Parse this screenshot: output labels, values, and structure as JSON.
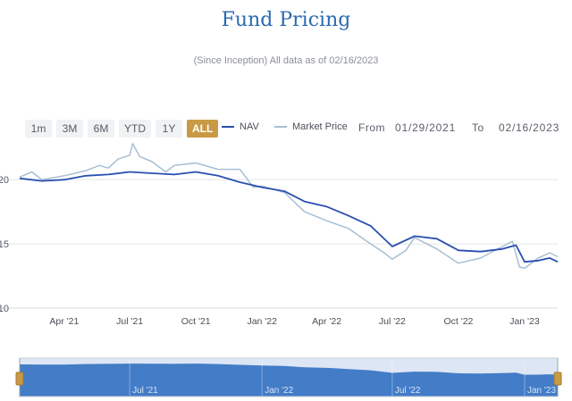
{
  "page": {
    "title": "Fund Pricing",
    "subtitle": "(Since Inception) All data as of 02/16/2023"
  },
  "range_buttons": [
    "1m",
    "3M",
    "6M",
    "YTD",
    "1Y",
    "ALL"
  ],
  "active_range": "ALL",
  "legend": {
    "nav": {
      "label": "NAV",
      "color": "#2b4fb0"
    },
    "market": {
      "label": "Market Price",
      "color": "#a7bfd2"
    }
  },
  "date_range": {
    "from_label": "From",
    "from_value": "01/29/2021",
    "to_label": "To",
    "to_value": "02/16/2023"
  },
  "chart_data": {
    "type": "line",
    "title": "",
    "xlabel": "",
    "ylabel": "",
    "x_range": [
      "2021-01-29",
      "2023-02-16"
    ],
    "ylim": [
      10,
      23
    ],
    "yticks": [
      {
        "value": 20,
        "label": "20"
      },
      {
        "value": 15,
        "label": "15"
      },
      {
        "value": 10,
        "label": "10"
      }
    ],
    "xticks": [
      {
        "date": "2021-04-01",
        "label": "Apr '21"
      },
      {
        "date": "2021-07-01",
        "label": "Jul '21"
      },
      {
        "date": "2021-10-01",
        "label": "Oct '21"
      },
      {
        "date": "2022-01-01",
        "label": "Jan '22"
      },
      {
        "date": "2022-04-01",
        "label": "Apr '22"
      },
      {
        "date": "2022-07-01",
        "label": "Jul '22"
      },
      {
        "date": "2022-10-01",
        "label": "Oct '22"
      },
      {
        "date": "2023-01-01",
        "label": "Jan '23"
      }
    ],
    "grid": true,
    "legend_position": "top",
    "series": [
      {
        "name": "NAV",
        "color": "#2b4fb0",
        "points": [
          [
            "2021-01-29",
            20.1
          ],
          [
            "2021-03-01",
            19.9
          ],
          [
            "2021-04-01",
            20.0
          ],
          [
            "2021-05-01",
            20.3
          ],
          [
            "2021-06-01",
            20.4
          ],
          [
            "2021-07-01",
            20.6
          ],
          [
            "2021-08-01",
            20.5
          ],
          [
            "2021-09-01",
            20.4
          ],
          [
            "2021-10-01",
            20.6
          ],
          [
            "2021-11-01",
            20.3
          ],
          [
            "2021-12-01",
            19.8
          ],
          [
            "2022-01-01",
            19.4
          ],
          [
            "2022-02-01",
            19.1
          ],
          [
            "2022-03-01",
            18.3
          ],
          [
            "2022-04-01",
            17.9
          ],
          [
            "2022-05-01",
            17.2
          ],
          [
            "2022-06-01",
            16.4
          ],
          [
            "2022-07-01",
            14.8
          ],
          [
            "2022-08-01",
            15.6
          ],
          [
            "2022-09-01",
            15.4
          ],
          [
            "2022-10-01",
            14.5
          ],
          [
            "2022-11-01",
            14.4
          ],
          [
            "2022-12-01",
            14.6
          ],
          [
            "2022-12-20",
            14.9
          ],
          [
            "2023-01-01",
            13.6
          ],
          [
            "2023-01-20",
            13.7
          ],
          [
            "2023-02-05",
            13.9
          ],
          [
            "2023-02-16",
            13.6
          ]
        ]
      },
      {
        "name": "Market Price",
        "color": "#a7bfd2",
        "points": [
          [
            "2021-01-29",
            20.2
          ],
          [
            "2021-02-15",
            20.6
          ],
          [
            "2021-03-01",
            20.0
          ],
          [
            "2021-04-01",
            20.3
          ],
          [
            "2021-05-01",
            20.7
          ],
          [
            "2021-05-20",
            21.1
          ],
          [
            "2021-06-01",
            20.9
          ],
          [
            "2021-06-15",
            21.6
          ],
          [
            "2021-07-01",
            21.9
          ],
          [
            "2021-07-05",
            22.8
          ],
          [
            "2021-07-15",
            21.8
          ],
          [
            "2021-08-01",
            21.4
          ],
          [
            "2021-08-20",
            20.6
          ],
          [
            "2021-09-01",
            21.1
          ],
          [
            "2021-10-01",
            21.3
          ],
          [
            "2021-11-01",
            20.8
          ],
          [
            "2021-12-01",
            20.8
          ],
          [
            "2021-12-20",
            19.4
          ],
          [
            "2022-01-01",
            19.5
          ],
          [
            "2022-02-01",
            19.0
          ],
          [
            "2022-03-01",
            17.5
          ],
          [
            "2022-04-01",
            16.8
          ],
          [
            "2022-05-01",
            16.2
          ],
          [
            "2022-06-01",
            15.0
          ],
          [
            "2022-06-20",
            14.3
          ],
          [
            "2022-07-01",
            13.8
          ],
          [
            "2022-07-20",
            14.5
          ],
          [
            "2022-08-01",
            15.5
          ],
          [
            "2022-09-01",
            14.6
          ],
          [
            "2022-10-01",
            13.5
          ],
          [
            "2022-11-01",
            13.9
          ],
          [
            "2022-12-01",
            14.8
          ],
          [
            "2022-12-15",
            15.2
          ],
          [
            "2022-12-25",
            13.2
          ],
          [
            "2023-01-01",
            13.1
          ],
          [
            "2023-01-20",
            13.9
          ],
          [
            "2023-02-05",
            14.3
          ],
          [
            "2023-02-16",
            14.0
          ]
        ]
      }
    ]
  },
  "navigator": {
    "x_range": [
      "2021-01-29",
      "2023-02-16"
    ],
    "ylim": [
      0,
      24
    ],
    "fill_color": "#3a76c4",
    "window_color": "#dde6f4",
    "xticks": [
      {
        "date": "2021-07-01",
        "label": "Jul '21"
      },
      {
        "date": "2022-01-01",
        "label": "Jan '22"
      },
      {
        "date": "2022-07-01",
        "label": "Jul '22"
      },
      {
        "date": "2023-01-01",
        "label": "Jan '23"
      }
    ]
  }
}
